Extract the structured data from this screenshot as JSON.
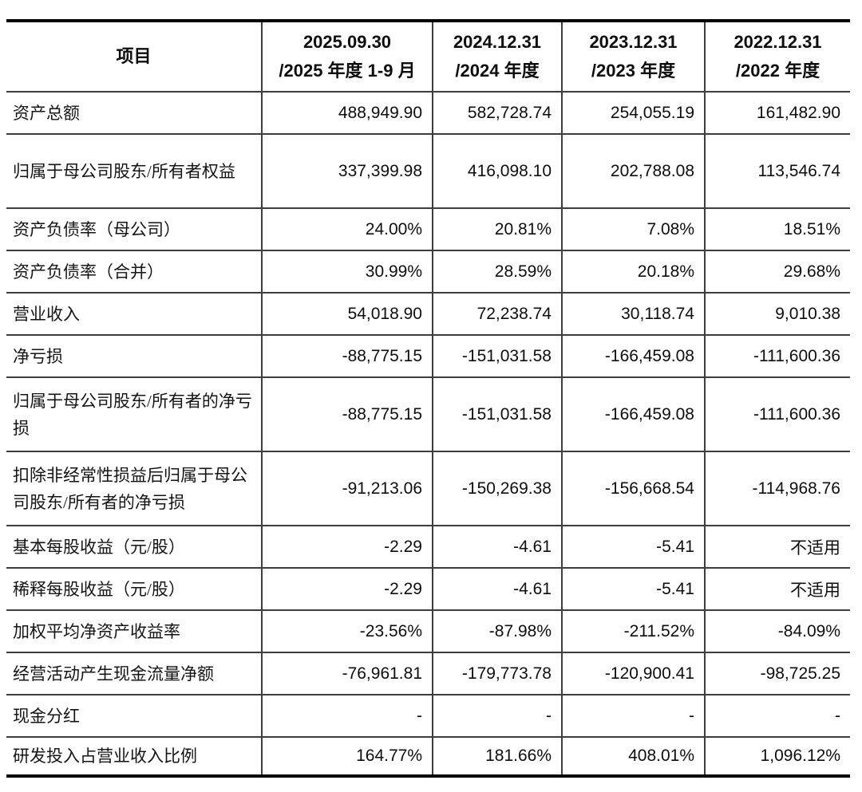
{
  "colors": {
    "background": "#ffffff",
    "border_heavy": "#000000",
    "border_light": "#3d3d3d",
    "text": "#111111"
  },
  "table": {
    "header": {
      "item_label": "项目",
      "periods": [
        {
          "line1": "2025.09.30",
          "line2": "/2025 年度 1-9 月"
        },
        {
          "line1": "2024.12.31",
          "line2": "/2024 年度"
        },
        {
          "line1": "2023.12.31",
          "line2": "/2023 年度"
        },
        {
          "line1": "2022.12.31",
          "line2": "/2022 年度"
        }
      ]
    },
    "rows": [
      {
        "label": "资产总额",
        "tall": false,
        "values": [
          "488,949.90",
          "582,728.74",
          "254,055.19",
          "161,482.90"
        ]
      },
      {
        "label": "归属于母公司股东/所有者权益",
        "tall": true,
        "values": [
          "337,399.98",
          "416,098.10",
          "202,788.08",
          "113,546.74"
        ]
      },
      {
        "label": "资产负债率（母公司）",
        "tall": false,
        "values": [
          "24.00%",
          "20.81%",
          "7.08%",
          "18.51%"
        ]
      },
      {
        "label": "资产负债率（合并）",
        "tall": false,
        "values": [
          "30.99%",
          "28.59%",
          "20.18%",
          "29.68%"
        ]
      },
      {
        "label": "营业收入",
        "tall": false,
        "values": [
          "54,018.90",
          "72,238.74",
          "30,118.74",
          "9,010.38"
        ]
      },
      {
        "label": "净亏损",
        "tall": false,
        "values": [
          "-88,775.15",
          "-151,031.58",
          "-166,459.08",
          "-111,600.36"
        ]
      },
      {
        "label": "归属于母公司股东/所有者的净亏损",
        "tall": true,
        "values": [
          "-88,775.15",
          "-151,031.58",
          "-166,459.08",
          "-111,600.36"
        ]
      },
      {
        "label": "扣除非经常性损益后归属于母公司股东/所有者的净亏损",
        "tall": true,
        "values": [
          "-91,213.06",
          "-150,269.38",
          "-156,668.54",
          "-114,968.76"
        ]
      },
      {
        "label": "基本每股收益（元/股）",
        "tall": false,
        "values": [
          "-2.29",
          "-4.61",
          "-5.41",
          "不适用"
        ]
      },
      {
        "label": "稀释每股收益（元/股）",
        "tall": false,
        "values": [
          "-2.29",
          "-4.61",
          "-5.41",
          "不适用"
        ]
      },
      {
        "label": "加权平均净资产收益率",
        "tall": false,
        "values": [
          "-23.56%",
          "-87.98%",
          "-211.52%",
          "-84.09%"
        ]
      },
      {
        "label": "经营活动产生现金流量净额",
        "tall": false,
        "values": [
          "-76,961.81",
          "-179,773.78",
          "-120,900.41",
          "-98,725.25"
        ]
      },
      {
        "label": "现金分红",
        "tall": false,
        "values": [
          "-",
          "-",
          "-",
          "-"
        ]
      },
      {
        "label": "研发投入占营业收入比例",
        "tall": false,
        "values": [
          "164.77%",
          "181.66%",
          "408.01%",
          "1,096.12%"
        ]
      }
    ]
  }
}
